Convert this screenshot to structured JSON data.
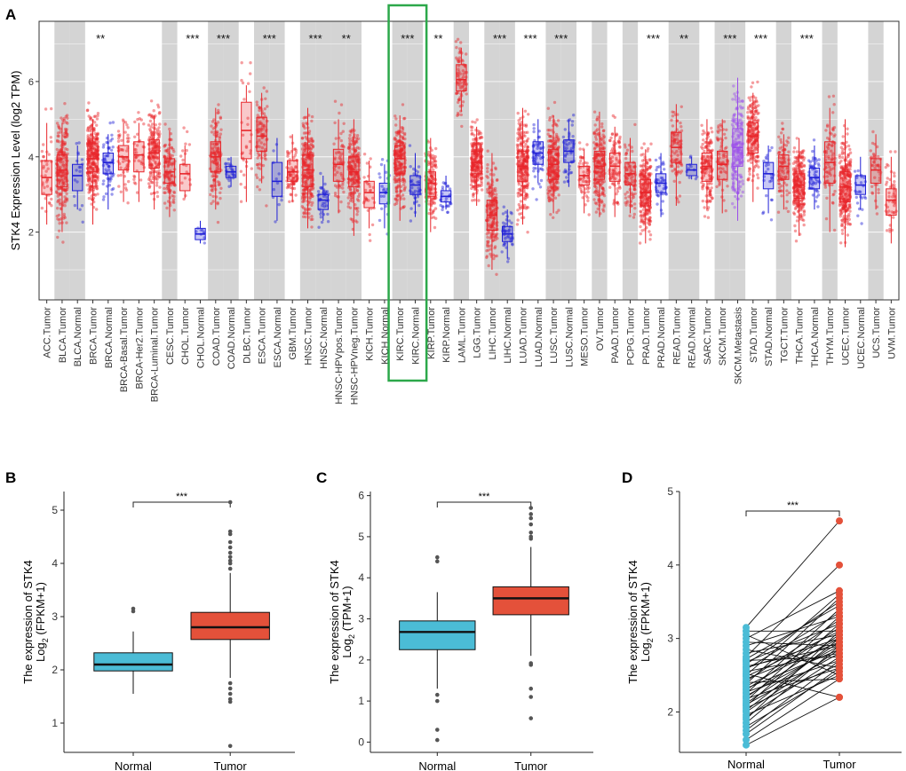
{
  "figure": {
    "panel_letters": [
      "A",
      "B",
      "C",
      "D"
    ]
  },
  "colors": {
    "tumor": "#e8262b",
    "normal": "#1f1fd6",
    "metastasis": "#9b4dea",
    "shade": "#d4d4d4",
    "highlight": "#2ca84a",
    "box_normal": "#4bbcd6",
    "box_tumor": "#e4513a"
  },
  "chart_data": [
    {
      "panel": "A",
      "type": "box",
      "ylabel": "STK4 Expression Level (log2 TPM)",
      "ylim": [
        0.2,
        7.6
      ],
      "yticks": [
        2,
        4,
        6
      ],
      "highlighted_group": "KIRC",
      "categories": [
        "ACC.Tumor",
        "BLCA.Tumor",
        "BLCA.Normal",
        "BRCA.Tumor",
        "BRCA.Normal",
        "BRCA-Basal.Tumor",
        "BRCA-Her2.Tumor",
        "BRCA-Luminal.Tumor",
        "CESC.Tumor",
        "CHOL.Tumor",
        "CHOL.Normal",
        "COAD.Tumor",
        "COAD.Normal",
        "DLBC.Tumor",
        "ESCA.Tumor",
        "ESCA.Normal",
        "GBM.Tumor",
        "HNSC.Tumor",
        "HNSC.Normal",
        "HNSC-HPVpos.Tumor",
        "HNSC-HPVneg.Tumor",
        "KICH.Tumor",
        "KICH.Normal",
        "KIRC.Tumor",
        "KIRC.Normal",
        "KIRP.Tumor",
        "KIRP.Normal",
        "LAML.Tumor",
        "LGG.Tumor",
        "LIHC.Tumor",
        "LIHC.Normal",
        "LUAD.Tumor",
        "LUAD.Normal",
        "LUSC.Tumor",
        "LUSC.Normal",
        "MESO.Tumor",
        "OV.Tumor",
        "PAAD.Tumor",
        "PCPG.Tumor",
        "PRAD.Tumor",
        "PRAD.Normal",
        "READ.Tumor",
        "READ.Normal",
        "SARC.Tumor",
        "SKCM.Tumor",
        "SKCM.Metastasis",
        "STAD.Tumor",
        "STAD.Normal",
        "TGCT.Tumor",
        "THCA.Tumor",
        "THCA.Normal",
        "THYM.Tumor",
        "UCEC.Tumor",
        "UCEC.Normal",
        "UCS.Tumor",
        "UVM.Tumor"
      ],
      "group_class": [
        "t",
        "t",
        "n",
        "t",
        "n",
        "t",
        "t",
        "t",
        "t",
        "t",
        "n",
        "t",
        "n",
        "t",
        "t",
        "n",
        "t",
        "t",
        "n",
        "t",
        "t",
        "t",
        "n",
        "t",
        "n",
        "t",
        "n",
        "t",
        "t",
        "t",
        "n",
        "t",
        "n",
        "t",
        "n",
        "t",
        "t",
        "t",
        "t",
        "t",
        "n",
        "t",
        "n",
        "t",
        "t",
        "m",
        "t",
        "n",
        "t",
        "t",
        "n",
        "t",
        "t",
        "n",
        "t",
        "t"
      ],
      "median": [
        3.45,
        3.65,
        3.5,
        3.95,
        3.85,
        4.0,
        4.05,
        4.1,
        3.6,
        3.55,
        1.95,
        4.0,
        3.6,
        4.7,
        4.55,
        3.35,
        3.6,
        3.65,
        2.85,
        3.8,
        3.6,
        3.05,
        3.05,
        3.95,
        3.25,
        3.3,
        2.95,
        6.05,
        3.85,
        2.45,
        1.95,
        3.75,
        4.1,
        3.8,
        4.15,
        3.5,
        3.75,
        3.75,
        3.55,
        3.05,
        3.3,
        4.25,
        3.65,
        3.75,
        3.8,
        4.25,
        4.55,
        3.55,
        3.75,
        3.25,
        3.45,
        3.85,
        3.2,
        3.25,
        3.65,
        2.85
      ],
      "q1": [
        3.0,
        3.2,
        3.1,
        3.6,
        3.55,
        3.65,
        3.6,
        3.7,
        3.3,
        3.1,
        1.8,
        3.6,
        3.45,
        3.95,
        4.15,
        2.95,
        3.35,
        3.2,
        2.6,
        3.35,
        3.2,
        2.65,
        2.75,
        3.55,
        3.0,
        2.95,
        2.8,
        5.75,
        3.55,
        2.05,
        1.75,
        3.35,
        3.8,
        3.4,
        3.85,
        3.25,
        3.4,
        3.35,
        3.25,
        2.7,
        3.05,
        3.85,
        3.5,
        3.35,
        3.4,
        3.75,
        4.1,
        3.15,
        3.4,
        2.9,
        3.15,
        3.3,
        2.8,
        3.0,
        3.3,
        2.45
      ],
      "q3": [
        3.9,
        4.05,
        3.8,
        4.35,
        4.1,
        4.3,
        4.4,
        4.45,
        3.95,
        3.8,
        2.1,
        4.4,
        3.75,
        5.45,
        5.05,
        3.85,
        3.9,
        4.05,
        3.0,
        4.2,
        4.0,
        3.35,
        3.3,
        4.3,
        3.5,
        3.6,
        3.1,
        6.45,
        4.15,
        2.85,
        2.15,
        4.15,
        4.4,
        4.2,
        4.45,
        3.75,
        4.15,
        4.1,
        3.85,
        3.4,
        3.55,
        4.65,
        3.8,
        4.1,
        4.15,
        4.75,
        4.9,
        3.85,
        4.05,
        3.55,
        3.7,
        4.4,
        3.6,
        3.5,
        3.95,
        3.15
      ],
      "n_points": [
        40,
        220,
        18,
        300,
        60,
        60,
        40,
        180,
        120,
        20,
        9,
        140,
        25,
        30,
        90,
        12,
        80,
        250,
        40,
        60,
        200,
        30,
        25,
        220,
        40,
        140,
        28,
        80,
        250,
        180,
        45,
        250,
        55,
        240,
        50,
        60,
        200,
        90,
        90,
        240,
        45,
        90,
        10,
        150,
        70,
        180,
        200,
        25,
        90,
        250,
        55,
        80,
        270,
        25,
        40,
        50
      ],
      "whisker_low": [
        2.2,
        2.0,
        2.6,
        2.2,
        2.6,
        2.8,
        2.8,
        2.6,
        2.4,
        2.9,
        1.7,
        2.6,
        3.2,
        2.8,
        3.3,
        2.3,
        2.8,
        2.1,
        2.3,
        2.5,
        1.9,
        2.1,
        2.1,
        2.3,
        2.4,
        2.0,
        2.6,
        5.2,
        2.7,
        1.0,
        1.3,
        2.2,
        3.3,
        2.5,
        3.2,
        2.5,
        2.4,
        2.4,
        2.5,
        1.7,
        2.4,
        2.7,
        3.4,
        2.6,
        2.5,
        2.3,
        2.8,
        2.5,
        2.6,
        1.9,
        2.6,
        2.0,
        1.6,
        2.6,
        2.6,
        1.7
      ],
      "whisker_high": [
        4.9,
        4.9,
        4.3,
        5.0,
        4.6,
        4.9,
        4.9,
        5.1,
        4.7,
        4.3,
        2.3,
        5.3,
        4.0,
        5.9,
        5.7,
        4.5,
        4.6,
        5.3,
        3.5,
        5.0,
        5.0,
        3.9,
        3.8,
        5.1,
        4.1,
        4.5,
        3.5,
        6.9,
        4.8,
        4.1,
        2.6,
        5.3,
        5.0,
        5.1,
        5.0,
        4.2,
        5.2,
        4.8,
        4.5,
        4.2,
        4.1,
        5.4,
        4.0,
        5.0,
        5.0,
        6.1,
        5.7,
        4.3,
        4.6,
        4.5,
        4.3,
        5.3,
        5.0,
        4.0,
        4.6,
        4.0
      ],
      "significance": [
        {
          "index": 3,
          "label": "**"
        },
        {
          "index": 9,
          "label": "***"
        },
        {
          "index": 11,
          "label": "***"
        },
        {
          "index": 14,
          "label": "***"
        },
        {
          "index": 17,
          "label": "***"
        },
        {
          "index": 19,
          "label": "**"
        },
        {
          "index": 23,
          "label": "***"
        },
        {
          "index": 25,
          "label": "**"
        },
        {
          "index": 29,
          "label": "***"
        },
        {
          "index": 31,
          "label": "***"
        },
        {
          "index": 33,
          "label": "***"
        },
        {
          "index": 39,
          "label": "***"
        },
        {
          "index": 41,
          "label": "**"
        },
        {
          "index": 44,
          "label": "***"
        },
        {
          "index": 46,
          "label": "***"
        },
        {
          "index": 49,
          "label": "***"
        }
      ]
    },
    {
      "panel": "B",
      "type": "box",
      "ylabel_line1": "The expression of STK4",
      "ylabel_line2": "Log",
      "ylabel_sub": "2",
      "ylabel_suffix": " (FPKM+1)",
      "categories": [
        "Normal",
        "Tumor"
      ],
      "ylim": [
        0.45,
        5.35
      ],
      "yticks": [
        1,
        2,
        3,
        4,
        5
      ],
      "significance": "***",
      "boxes": [
        {
          "q1": 1.98,
          "median": 2.1,
          "q3": 2.32,
          "whisker_low": 1.55,
          "whisker_high": 2.72,
          "outliers": [
            3.1,
            3.15
          ]
        },
        {
          "q1": 2.57,
          "median": 2.8,
          "q3": 3.08,
          "whisker_low": 1.85,
          "whisker_high": 3.82,
          "outliers": [
            0.57,
            1.4,
            1.45,
            1.55,
            1.65,
            1.75,
            3.9,
            4.0,
            4.05,
            4.12,
            4.2,
            4.3,
            4.4,
            4.55,
            4.6,
            5.15
          ]
        }
      ]
    },
    {
      "panel": "C",
      "type": "box",
      "ylabel_line1": "The expression of STK4",
      "ylabel_line2": "Log",
      "ylabel_sub": "2",
      "ylabel_suffix": " (TPM+1)",
      "categories": [
        "Normal",
        "Tumor"
      ],
      "ylim": [
        -0.25,
        6.1
      ],
      "yticks": [
        0,
        1,
        2,
        3,
        4,
        5,
        6
      ],
      "significance": "***",
      "boxes": [
        {
          "q1": 2.25,
          "median": 2.68,
          "q3": 2.95,
          "whisker_low": 1.3,
          "whisker_high": 3.65,
          "outliers": [
            0.05,
            0.3,
            1.0,
            1.15,
            4.4,
            4.5
          ]
        },
        {
          "q1": 3.1,
          "median": 3.5,
          "q3": 3.78,
          "whisker_low": 2.1,
          "whisker_high": 4.75,
          "outliers": [
            0.58,
            1.1,
            1.3,
            1.88,
            1.92,
            4.95,
            5.0,
            5.1,
            5.3,
            5.45,
            5.55,
            5.7
          ]
        }
      ]
    },
    {
      "panel": "D",
      "type": "paired",
      "ylabel_line1": "The expression of STK4",
      "ylabel_line2": "Log",
      "ylabel_sub": "2",
      "ylabel_suffix": " (FPKM+1)",
      "categories": [
        "Normal",
        "Tumor"
      ],
      "ylim": [
        1.45,
        5.0
      ],
      "yticks": [
        2,
        3,
        4,
        5
      ],
      "significance": "***",
      "normal_values": [
        1.55,
        1.62,
        1.7,
        1.75,
        1.8,
        1.85,
        1.9,
        1.93,
        1.96,
        2.0,
        2.02,
        2.05,
        2.08,
        2.1,
        2.12,
        2.15,
        2.18,
        2.2,
        2.22,
        2.25,
        2.27,
        2.3,
        2.32,
        2.35,
        2.38,
        2.4,
        2.42,
        2.45,
        2.48,
        2.5,
        2.52,
        2.55,
        2.58,
        2.6,
        2.62,
        2.65,
        2.68,
        2.7,
        2.72,
        2.75,
        2.8,
        2.85,
        2.9,
        2.95,
        3.0,
        3.05,
        3.1,
        3.15
      ],
      "tumor_values": [
        2.2,
        2.45,
        2.6,
        2.7,
        2.55,
        2.9,
        3.1,
        2.75,
        2.5,
        2.85,
        3.0,
        2.65,
        3.2,
        2.8,
        2.95,
        3.3,
        2.6,
        3.05,
        2.9,
        3.4,
        2.7,
        3.15,
        2.85,
        3.0,
        3.55,
        2.45,
        3.25,
        2.95,
        3.1,
        3.6,
        2.2,
        2.8,
        3.35,
        3.0,
        2.9,
        3.5,
        3.2,
        2.75,
        3.45,
        4.0,
        3.05,
        2.6,
        3.3,
        2.9,
        3.65,
        2.5,
        3.1,
        4.6
      ]
    }
  ]
}
